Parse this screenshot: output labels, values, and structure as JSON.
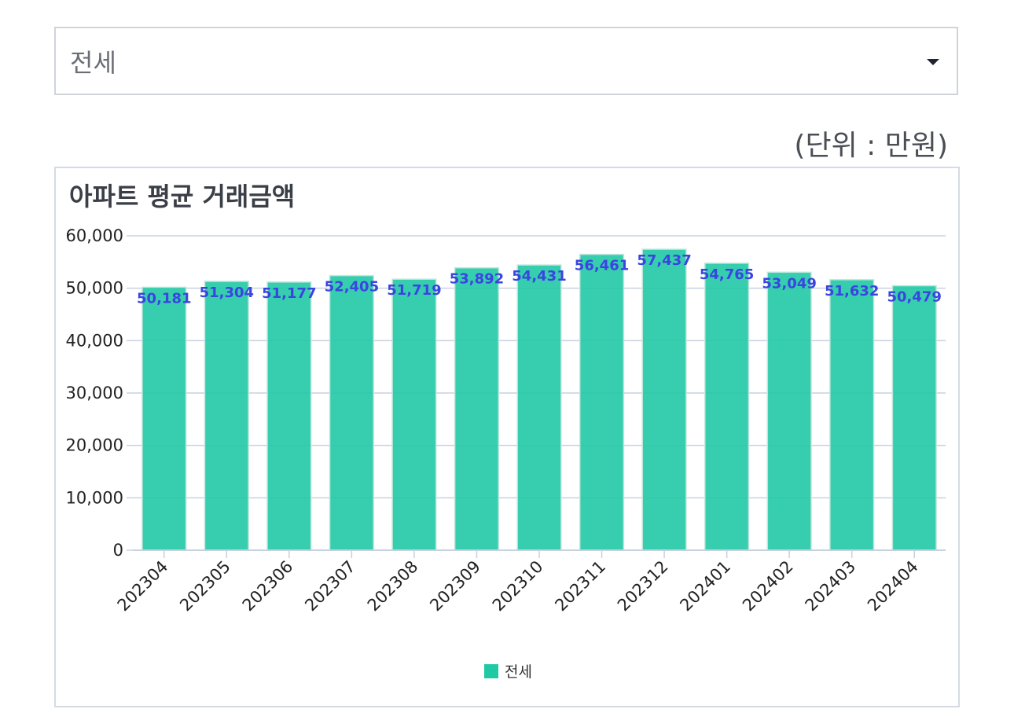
{
  "select": {
    "value": "전세",
    "caret_icon": "caret-down-icon"
  },
  "unit_label": "(단위 : 만원)",
  "colors": {
    "bar": "#20c9a5",
    "data_label": "#3a45e0",
    "grid": "#c7d2df",
    "axis_text": "#222222"
  },
  "chart_data": {
    "type": "bar",
    "title": "아파트 평균 거래금액",
    "xlabel": "",
    "ylabel": "",
    "categories": [
      "202304",
      "202305",
      "202306",
      "202307",
      "202308",
      "202309",
      "202310",
      "202311",
      "202312",
      "202401",
      "202402",
      "202403",
      "202404"
    ],
    "series": [
      {
        "name": "전세",
        "values": [
          50181,
          51304,
          51177,
          52405,
          51719,
          53892,
          54431,
          56461,
          57437,
          54765,
          53049,
          51632,
          50479
        ],
        "value_labels": [
          "50,181",
          "51,304",
          "51,177",
          "52,405",
          "51,719",
          "53,892",
          "54,431",
          "56,461",
          "57,437",
          "54,765",
          "53,049",
          "51,632",
          "50,479"
        ]
      }
    ],
    "ylim": [
      0,
      60000
    ],
    "yticks": [
      0,
      10000,
      20000,
      30000,
      40000,
      50000,
      60000
    ],
    "ytick_labels": [
      "0",
      "10,000",
      "20,000",
      "30,000",
      "40,000",
      "50,000",
      "60,000"
    ],
    "grid": true,
    "legend_position": "bottom-center"
  }
}
